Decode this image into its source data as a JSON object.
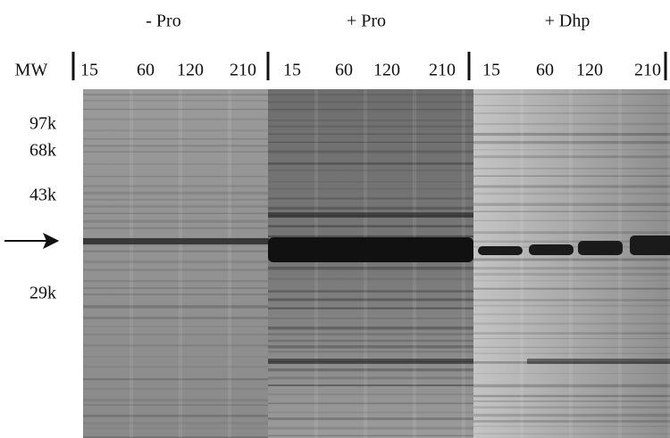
{
  "mw_header": "MW",
  "mw_markers": [
    "97k",
    "68k",
    "43k",
    "29k"
  ],
  "groups": [
    {
      "label": "- Pro",
      "lanes": [
        "15",
        "60",
        "120",
        "210"
      ]
    },
    {
      "label": "+ Pro",
      "lanes": [
        "15",
        "60",
        "120",
        "210"
      ]
    },
    {
      "label": "+ Dhp",
      "lanes": [
        "15",
        "60",
        "120",
        "210"
      ]
    }
  ]
}
